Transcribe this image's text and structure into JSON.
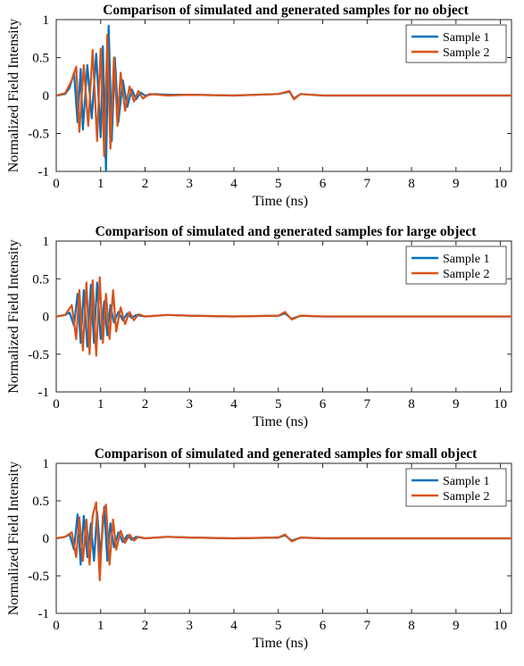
{
  "chart_data": [
    {
      "type": "line",
      "title": "Comparison of simulated and generated samples for no object",
      "xlabel": "Time (ns)",
      "ylabel": "Normalized Field Intensity",
      "xlim": [
        0,
        10.25
      ],
      "ylim": [
        -1,
        1
      ],
      "xticks": [
        0,
        1,
        2,
        3,
        4,
        5,
        6,
        7,
        8,
        9,
        10
      ],
      "yticks": [
        -1,
        -0.5,
        0,
        0.5,
        1
      ],
      "grid": false,
      "legend": "top-right",
      "series": [
        {
          "name": "Sample 1",
          "color": "#0072BD",
          "x": [
            0,
            0.2,
            0.3,
            0.4,
            0.48,
            0.55,
            0.6,
            0.7,
            0.8,
            0.9,
            1.0,
            1.05,
            1.12,
            1.18,
            1.25,
            1.32,
            1.4,
            1.5,
            1.6,
            1.7,
            1.8,
            1.9,
            2.0,
            2.2,
            2.5,
            3.0,
            4.0,
            5.0,
            5.25,
            5.35,
            5.5,
            6.0,
            8.0,
            10.25
          ],
          "y": [
            0,
            0.02,
            0.1,
            0.3,
            -0.35,
            0.35,
            -0.45,
            0.4,
            -0.3,
            0.55,
            -0.55,
            0.65,
            -1.0,
            0.92,
            -0.6,
            0.5,
            -0.35,
            0.2,
            -0.15,
            0.08,
            -0.05,
            0.04,
            0,
            0.02,
            0.01,
            0.01,
            0,
            0.02,
            0.05,
            -0.04,
            0.02,
            0,
            0,
            0
          ]
        },
        {
          "name": "Sample 2",
          "color": "#D95319",
          "x": [
            0,
            0.2,
            0.35,
            0.45,
            0.52,
            0.62,
            0.72,
            0.82,
            0.92,
            1.0,
            1.08,
            1.15,
            1.22,
            1.3,
            1.38,
            1.45,
            1.55,
            1.65,
            1.75,
            1.85,
            1.95,
            2.1,
            2.3,
            2.5,
            3.0,
            4.0,
            5.0,
            5.25,
            5.35,
            5.5,
            6.0,
            8.0,
            10.25
          ],
          "y": [
            0,
            0.03,
            0.2,
            0.38,
            -0.48,
            0.4,
            -0.4,
            0.6,
            -0.6,
            0.62,
            -0.8,
            0.8,
            -0.7,
            0.5,
            -0.4,
            0.3,
            -0.2,
            0.12,
            -0.08,
            0.06,
            -0.04,
            0.02,
            0.01,
            0,
            0.01,
            0,
            0.02,
            0.06,
            -0.05,
            0.02,
            0,
            0,
            0
          ]
        }
      ]
    },
    {
      "type": "line",
      "title": "Comparison of simulated and generated samples for large object",
      "xlabel": "Time (ns)",
      "ylabel": "Normalized Field Intensity",
      "xlim": [
        0,
        10.25
      ],
      "ylim": [
        -1,
        1
      ],
      "xticks": [
        0,
        1,
        2,
        3,
        4,
        5,
        6,
        7,
        8,
        9,
        10
      ],
      "yticks": [
        -1,
        -0.5,
        0,
        0.5,
        1
      ],
      "grid": false,
      "legend": "top-right",
      "series": [
        {
          "name": "Sample 1",
          "color": "#0072BD",
          "x": [
            0,
            0.2,
            0.3,
            0.4,
            0.48,
            0.55,
            0.62,
            0.7,
            0.78,
            0.85,
            0.92,
            1.0,
            1.08,
            1.15,
            1.22,
            1.3,
            1.4,
            1.5,
            1.6,
            1.7,
            1.8,
            2.0,
            2.5,
            3.0,
            4.0,
            5.0,
            5.15,
            5.3,
            5.5,
            6.0,
            8.0,
            10.25
          ],
          "y": [
            0,
            0.02,
            0.05,
            -0.12,
            0.3,
            -0.35,
            0.35,
            -0.4,
            0.42,
            -0.35,
            0.45,
            -0.3,
            0.2,
            -0.25,
            0.15,
            -0.08,
            0.06,
            -0.05,
            0.04,
            -0.02,
            0.02,
            0,
            0.02,
            0.01,
            0,
            0.01,
            0.04,
            -0.03,
            0.01,
            0,
            0,
            0
          ]
        },
        {
          "name": "Sample 2",
          "color": "#D95319",
          "x": [
            0,
            0.2,
            0.35,
            0.45,
            0.52,
            0.6,
            0.68,
            0.75,
            0.82,
            0.9,
            0.98,
            1.05,
            1.12,
            1.2,
            1.28,
            1.35,
            1.45,
            1.55,
            1.65,
            1.75,
            1.85,
            2.0,
            2.5,
            3.0,
            4.0,
            5.0,
            5.15,
            5.3,
            5.5,
            6.0,
            8.0,
            10.25
          ],
          "y": [
            0,
            0.02,
            0.15,
            -0.3,
            0.35,
            -0.45,
            0.45,
            -0.5,
            0.48,
            -0.52,
            0.52,
            -0.35,
            0.3,
            -0.3,
            0.35,
            -0.2,
            0.12,
            -0.1,
            0.06,
            -0.05,
            0.03,
            0,
            0.02,
            0.01,
            0,
            0.01,
            0.06,
            -0.04,
            0.01,
            0,
            0,
            0
          ]
        }
      ]
    },
    {
      "type": "line",
      "title": "Comparison of simulated and generated samples for small object",
      "xlabel": "Time (ns)",
      "ylabel": "Normalized Field Intensity",
      "xlim": [
        0,
        10.25
      ],
      "ylim": [
        -1,
        1
      ],
      "xticks": [
        0,
        1,
        2,
        3,
        4,
        5,
        6,
        7,
        8,
        9,
        10
      ],
      "yticks": [
        -1,
        -0.5,
        0,
        0.5,
        1
      ],
      "grid": false,
      "legend": "top-right",
      "series": [
        {
          "name": "Sample 1",
          "color": "#0072BD",
          "x": [
            0,
            0.2,
            0.3,
            0.4,
            0.48,
            0.55,
            0.62,
            0.7,
            0.78,
            0.85,
            0.92,
            1.0,
            1.08,
            1.15,
            1.22,
            1.3,
            1.4,
            1.5,
            1.6,
            1.7,
            1.8,
            2.0,
            2.5,
            3.0,
            4.0,
            5.0,
            5.15,
            5.3,
            5.5,
            6.0,
            8.0,
            10.25
          ],
          "y": [
            0,
            0.02,
            0.05,
            -0.15,
            0.32,
            -0.35,
            0.3,
            -0.25,
            0.2,
            -0.3,
            0.35,
            -0.25,
            0.42,
            -0.3,
            0.2,
            -0.12,
            0.08,
            -0.05,
            0.04,
            -0.02,
            0.02,
            0,
            0.02,
            0.01,
            0,
            0.01,
            0.04,
            -0.03,
            0.01,
            0,
            0,
            0
          ]
        },
        {
          "name": "Sample 2",
          "color": "#D95319",
          "x": [
            0,
            0.2,
            0.35,
            0.45,
            0.52,
            0.6,
            0.68,
            0.75,
            0.82,
            0.9,
            0.98,
            1.05,
            1.12,
            1.2,
            1.28,
            1.35,
            1.45,
            1.55,
            1.65,
            1.75,
            1.85,
            2.0,
            2.5,
            3.0,
            4.0,
            5.0,
            5.15,
            5.3,
            5.5,
            6.0,
            8.0,
            10.25
          ],
          "y": [
            0,
            0.02,
            0.08,
            -0.25,
            0.28,
            -0.3,
            0.25,
            -0.35,
            0.3,
            0.48,
            -0.56,
            0.3,
            0.45,
            -0.35,
            0.25,
            -0.15,
            0.1,
            -0.06,
            0.05,
            -0.03,
            0.02,
            0,
            0.02,
            0.01,
            0,
            0.01,
            0.05,
            -0.04,
            0.01,
            0,
            0,
            0
          ]
        }
      ]
    }
  ]
}
